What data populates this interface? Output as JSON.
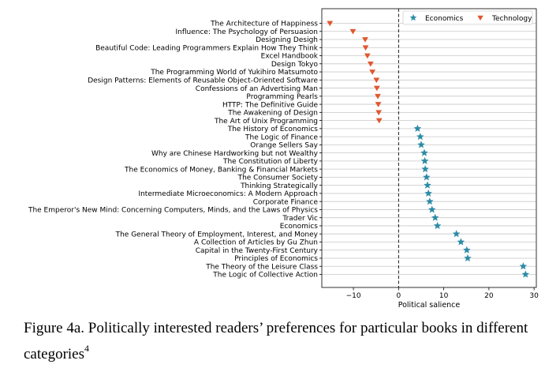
{
  "chart_data": {
    "type": "scatter",
    "title": "",
    "xlabel": "Political salience",
    "ylabel": "",
    "xlim": [
      -17,
      30.5
    ],
    "xticks": [
      -10,
      0,
      10,
      20,
      30
    ],
    "xtick_labels": [
      "−10",
      "0",
      "10",
      "20",
      "30"
    ],
    "reference_line_x": 0,
    "grid": "horizontal",
    "legend_position": "top-right",
    "categories": [
      "The Architecture of Happiness",
      "Influence: The Psychology of Persuasion",
      "Designing Desigh",
      "Beautiful Code: Leading Programmers Explain How They Think",
      "Excel Handbook",
      "Design Tokyo",
      "The Programming World of Yukihiro Matsumoto",
      "Design Patterns: Elements of Reusable Object-Oriented Software",
      "Confessions of an Advertising Man",
      "Programming Pearls",
      "HTTP: The Definitive Guide",
      "The Awakening of Design",
      "The Art of Unix Programming",
      "The History of Economics",
      "The Logic of Finance",
      "Orange Sellers Say",
      "Why are Chinese Hardworking but not Wealthy",
      "The Constitution of Liberty",
      "The Economics of Money, Banking & Financial Markets",
      "The Consumer Society",
      "Thinking Strategically",
      "Intermediate Microeconomics: A Modern Approach",
      "Corporate Finance",
      "The Emperor's New Mind: Concerning Computers, Minds, and the Laws of Physics",
      "Trader Vic",
      "Economics",
      "The General Theory of Employment, Interest, and Money",
      "A Collection of Articles by Gu Zhun",
      "Capital in the Twenty-First Century",
      "Principles of Economics",
      "The Theory of the Leisure Class",
      "The Logic of Collective Action"
    ],
    "series": [
      {
        "name": "Economics",
        "marker": "star",
        "color": "#2b8ba6",
        "points": [
          {
            "label": "The History of Economics",
            "x": 4.2
          },
          {
            "label": "The Logic of Finance",
            "x": 4.8
          },
          {
            "label": "Orange Sellers Say",
            "x": 5.0
          },
          {
            "label": "Why are Chinese Hardworking but not Wealthy",
            "x": 5.7
          },
          {
            "label": "The Constitution of Liberty",
            "x": 5.8
          },
          {
            "label": "The Economics of Money, Banking & Financial Markets",
            "x": 5.9
          },
          {
            "label": "The Consumer Society",
            "x": 6.2
          },
          {
            "label": "Thinking Strategically",
            "x": 6.4
          },
          {
            "label": "Intermediate Microeconomics: A Modern Approach",
            "x": 6.6
          },
          {
            "label": "Corporate Finance",
            "x": 6.9
          },
          {
            "label": "The Emperor's New Mind: Concerning Computers, Minds, and the Laws of Physics",
            "x": 7.4
          },
          {
            "label": "Trader Vic",
            "x": 8.1
          },
          {
            "label": "Economics",
            "x": 8.6
          },
          {
            "label": "The General Theory of Employment, Interest, and Money",
            "x": 12.8
          },
          {
            "label": "A Collection of Articles by Gu Zhun",
            "x": 13.8
          },
          {
            "label": "Capital in the Twenty-First Century",
            "x": 15.1
          },
          {
            "label": "Principles of Economics",
            "x": 15.3
          },
          {
            "label": "The Theory of the Leisure Class",
            "x": 27.6
          },
          {
            "label": "The Logic of Collective Action",
            "x": 28.1
          }
        ]
      },
      {
        "name": "Technology",
        "marker": "triangle-down",
        "color": "#e0572e",
        "points": [
          {
            "label": "The Architecture of Happiness",
            "x": -15.2
          },
          {
            "label": "Influence: The Psychology of Persuasion",
            "x": -10.1
          },
          {
            "label": "Designing Desigh",
            "x": -7.4
          },
          {
            "label": "Beautiful Code: Leading Programmers Explain How They Think",
            "x": -7.3
          },
          {
            "label": "Excel Handbook",
            "x": -6.9
          },
          {
            "label": "Design Tokyo",
            "x": -6.2
          },
          {
            "label": "The Programming World of Yukihiro Matsumoto",
            "x": -5.8
          },
          {
            "label": "Design Patterns: Elements of Reusable Object-Oriented Software",
            "x": -4.9
          },
          {
            "label": "Confessions of an Advertising Man",
            "x": -4.8
          },
          {
            "label": "Programming Pearls",
            "x": -4.6
          },
          {
            "label": "HTTP: The Definitive Guide",
            "x": -4.5
          },
          {
            "label": "The Awakening of Design",
            "x": -4.4
          },
          {
            "label": "The Art of Unix Programming",
            "x": -4.3
          }
        ]
      }
    ]
  },
  "caption": {
    "line1": "Figure 4a.  Politically interested readers’ preferences for particular books in different",
    "line2": "categories",
    "footnote_mark": "4"
  }
}
